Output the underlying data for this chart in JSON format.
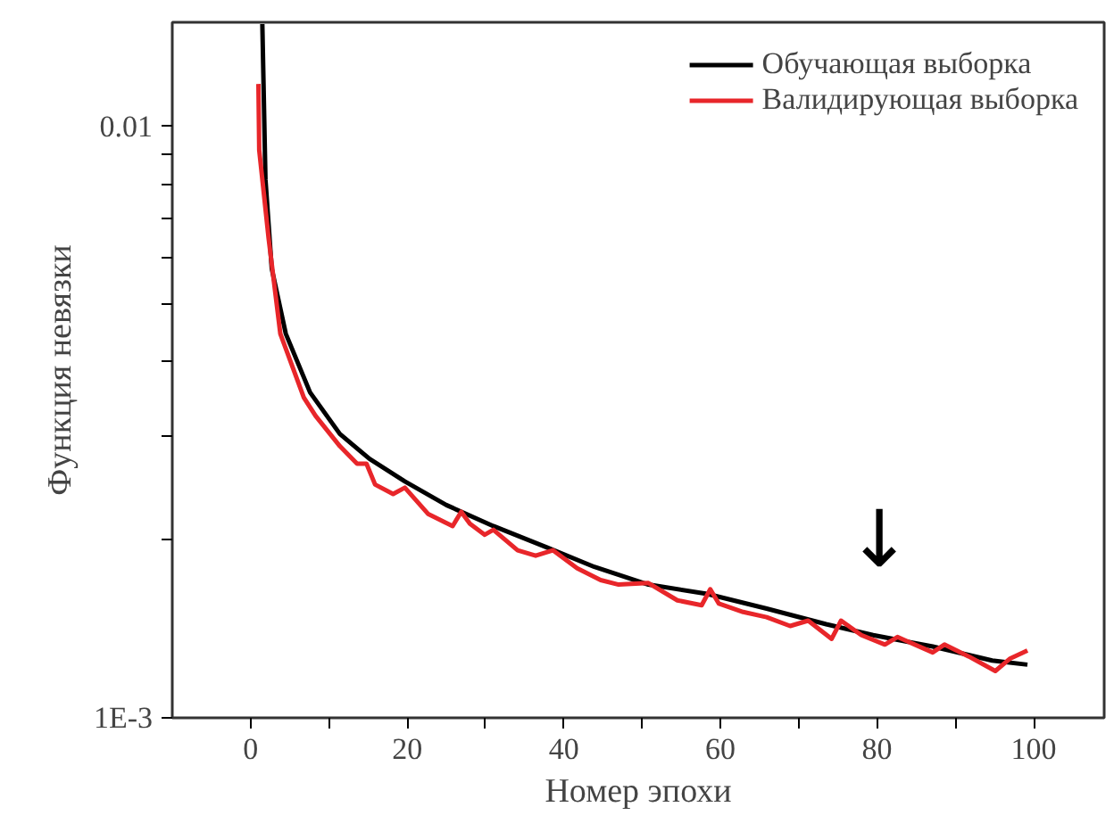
{
  "chart_data": {
    "type": "line",
    "xlabel": "Номер эпохи",
    "ylabel": "Функция невязки",
    "log": "y",
    "grid": false,
    "legend": "top right",
    "line_style": "solid",
    "marker": "none",
    "xlim": [
      -10,
      109
    ],
    "ylim": [
      0.001,
      0.015
    ],
    "xticks": [
      0,
      {
        "value": 10,
        "label": null
      },
      20,
      {
        "value": 30,
        "label": null
      },
      40,
      {
        "value": 50,
        "label": null
      },
      60,
      {
        "value": 70,
        "label": null
      },
      80,
      {
        "value": 90,
        "label": null
      },
      100
    ],
    "yticks": [
      {
        "value": 0.001,
        "label": "1E-3"
      },
      {
        "value": 0.002,
        "label": null
      },
      {
        "value": 0.003,
        "label": null
      },
      {
        "value": 0.004,
        "label": null
      },
      {
        "value": 0.005,
        "label": null
      },
      {
        "value": 0.006,
        "label": null
      },
      {
        "value": 0.007,
        "label": null
      },
      {
        "value": 0.008,
        "label": null
      },
      {
        "value": 0.009,
        "label": null
      },
      0.01
    ],
    "series": [
      {
        "name": "Обучающая выборка",
        "color": "#000000",
        "x": [
          1.5,
          1.9,
          2.7,
          4.5,
          7.6,
          11.4,
          15.2,
          19.7,
          25,
          31,
          37.9,
          43.9,
          50.8,
          58.3,
          65.9,
          73.5,
          79.5,
          87.1,
          94.7,
          99.2
        ],
        "values": [
          0.0149,
          0.00813,
          0.00575,
          0.00446,
          0.00355,
          0.00302,
          0.00274,
          0.00251,
          0.00229,
          0.00211,
          0.00194,
          0.0018,
          0.00168,
          0.00162,
          0.00153,
          0.00144,
          0.00138,
          0.00132,
          0.00125,
          0.00123
        ]
      },
      {
        "name": "Валидирующая выборка",
        "color": "#e8262a",
        "x": [
          1,
          1.1,
          2.3,
          3.8,
          6.8,
          8.3,
          11.4,
          13.6,
          14.8,
          15.9,
          18.2,
          19.7,
          22.7,
          25.8,
          26.9,
          28,
          29.9,
          31,
          34.1,
          36.4,
          38.6,
          41.7,
          44.7,
          47,
          50.8,
          54.5,
          57.6,
          58.7,
          59.8,
          62.9,
          65.9,
          68.9,
          71.2,
          74.2,
          75.4,
          78,
          81,
          82.6,
          87.1,
          88.6,
          91.7,
          95.1,
          97,
          99.2
        ],
        "values": [
          0.0118,
          0.00912,
          0.00647,
          0.00446,
          0.00348,
          0.00324,
          0.00288,
          0.00269,
          0.00269,
          0.00248,
          0.00239,
          0.00245,
          0.00221,
          0.00211,
          0.00223,
          0.00213,
          0.00204,
          0.00208,
          0.00192,
          0.00188,
          0.00192,
          0.00179,
          0.00171,
          0.00168,
          0.00169,
          0.00158,
          0.00155,
          0.00165,
          0.00156,
          0.00151,
          0.00148,
          0.00143,
          0.00146,
          0.00136,
          0.00146,
          0.00138,
          0.00133,
          0.00137,
          0.00129,
          0.00133,
          0.00127,
          0.0012,
          0.00126,
          0.0013
        ]
      }
    ],
    "annotations": [
      "↓"
    ]
  }
}
